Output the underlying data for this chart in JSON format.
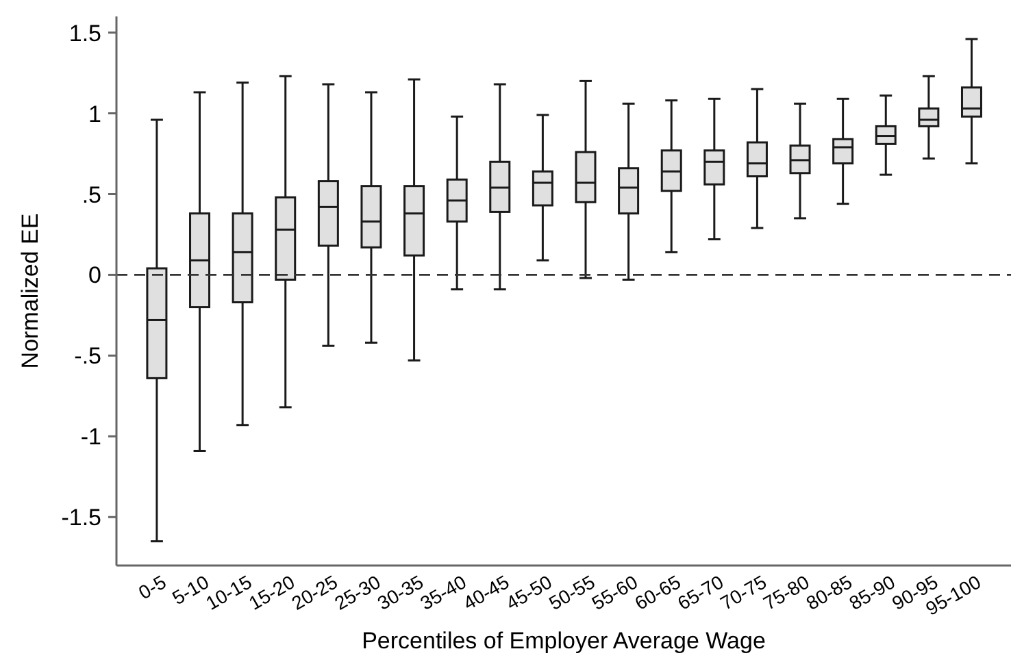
{
  "chart_data": {
    "type": "box",
    "xlabel": "Percentiles of Employer Average Wage",
    "ylabel": "Normalized EE",
    "categories": [
      "0-5",
      "5-10",
      "10-15",
      "15-20",
      "20-25",
      "25-30",
      "30-35",
      "35-40",
      "40-45",
      "45-50",
      "50-55",
      "55-60",
      "60-65",
      "65-70",
      "70-75",
      "75-80",
      "80-85",
      "85-90",
      "90-95",
      "95-100"
    ],
    "boxes": [
      {
        "low": -1.65,
        "q1": -0.64,
        "median": -0.28,
        "q3": 0.04,
        "high": 0.96
      },
      {
        "low": -1.09,
        "q1": -0.2,
        "median": 0.09,
        "q3": 0.38,
        "high": 1.13
      },
      {
        "low": -0.93,
        "q1": -0.17,
        "median": 0.14,
        "q3": 0.38,
        "high": 1.19
      },
      {
        "low": -0.82,
        "q1": -0.03,
        "median": 0.28,
        "q3": 0.48,
        "high": 1.23
      },
      {
        "low": -0.44,
        "q1": 0.18,
        "median": 0.42,
        "q3": 0.58,
        "high": 1.18
      },
      {
        "low": -0.42,
        "q1": 0.17,
        "median": 0.33,
        "q3": 0.55,
        "high": 1.13
      },
      {
        "low": -0.53,
        "q1": 0.12,
        "median": 0.38,
        "q3": 0.55,
        "high": 1.21
      },
      {
        "low": -0.09,
        "q1": 0.33,
        "median": 0.46,
        "q3": 0.59,
        "high": 0.98
      },
      {
        "low": -0.09,
        "q1": 0.39,
        "median": 0.54,
        "q3": 0.7,
        "high": 1.18
      },
      {
        "low": 0.09,
        "q1": 0.43,
        "median": 0.57,
        "q3": 0.64,
        "high": 0.99
      },
      {
        "low": -0.02,
        "q1": 0.45,
        "median": 0.57,
        "q3": 0.76,
        "high": 1.2
      },
      {
        "low": -0.03,
        "q1": 0.38,
        "median": 0.54,
        "q3": 0.66,
        "high": 1.06
      },
      {
        "low": 0.14,
        "q1": 0.52,
        "median": 0.64,
        "q3": 0.77,
        "high": 1.08
      },
      {
        "low": 0.22,
        "q1": 0.56,
        "median": 0.7,
        "q3": 0.77,
        "high": 1.09
      },
      {
        "low": 0.29,
        "q1": 0.61,
        "median": 0.69,
        "q3": 0.82,
        "high": 1.15
      },
      {
        "low": 0.35,
        "q1": 0.63,
        "median": 0.71,
        "q3": 0.8,
        "high": 1.06
      },
      {
        "low": 0.44,
        "q1": 0.69,
        "median": 0.79,
        "q3": 0.84,
        "high": 1.09
      },
      {
        "low": 0.62,
        "q1": 0.81,
        "median": 0.86,
        "q3": 0.92,
        "high": 1.11
      },
      {
        "low": 0.72,
        "q1": 0.92,
        "median": 0.96,
        "q3": 1.03,
        "high": 1.23
      },
      {
        "low": 0.69,
        "q1": 0.98,
        "median": 1.03,
        "q3": 1.16,
        "high": 1.46
      }
    ],
    "color": "#e0e0e0",
    "ylim": [
      -1.8,
      1.6
    ],
    "yticks": [
      -1.5,
      -1,
      {
        "value": -0.5,
        "label": "-.5"
      },
      0,
      {
        "value": 0.5,
        "label": ".5"
      },
      1,
      1.5
    ],
    "ref_lines": [
      {
        "axis": "y",
        "value": 0,
        "color": "#333333",
        "line_style": "dashed"
      }
    ]
  }
}
